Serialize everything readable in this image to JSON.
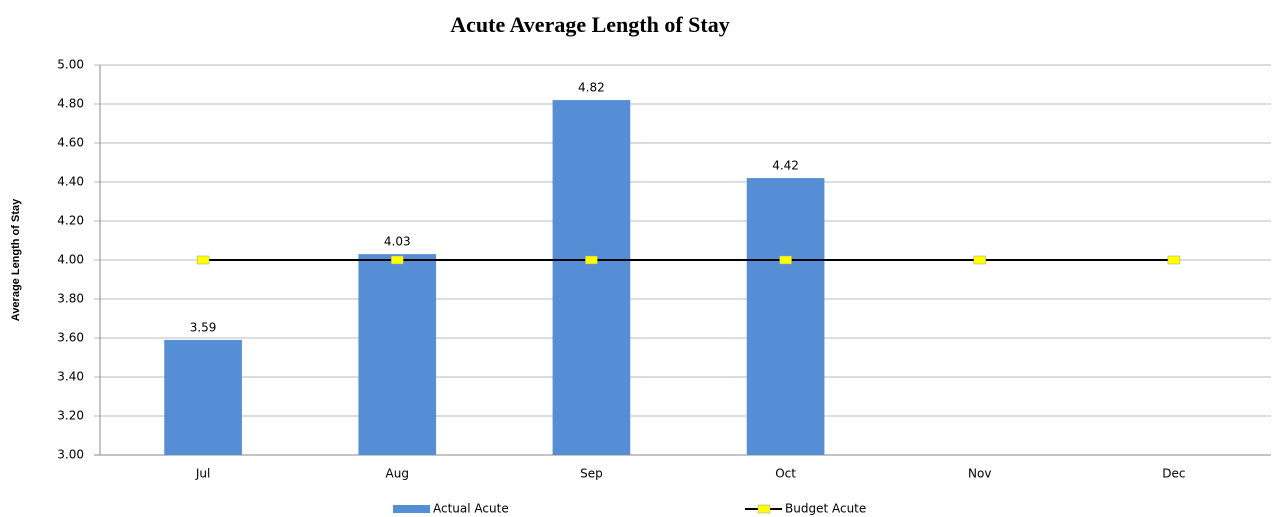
{
  "chart_data": {
    "type": "bar",
    "title": "Acute Average Length of Stay",
    "y_label": "Average Length of Stay",
    "categories": [
      "Jul",
      "Aug",
      "Sep",
      "Oct",
      "Nov",
      "Dec"
    ],
    "series": [
      {
        "name": "Actual Acute",
        "type": "bar",
        "color": "#558ed5",
        "values": [
          3.59,
          4.03,
          4.82,
          4.42,
          null,
          null
        ]
      },
      {
        "name": "Budget Acute",
        "type": "line",
        "color": "#000000",
        "marker_color": "#ffff00",
        "values": [
          4.0,
          4.0,
          4.0,
          4.0,
          4.0,
          4.0
        ]
      }
    ],
    "ylim": [
      3,
      5
    ],
    "yticks": [
      {
        "value": 3,
        "label": "3.00"
      },
      {
        "value": 3.2,
        "label": "3.20"
      },
      {
        "value": 3.4,
        "label": "3.40"
      },
      {
        "value": 3.6,
        "label": "3.60"
      },
      {
        "value": 3.8,
        "label": "3.80"
      },
      {
        "value": 4,
        "label": "4.00"
      },
      {
        "value": 4.2,
        "label": "4.20"
      },
      {
        "value": 4.4,
        "label": "4.40"
      },
      {
        "value": 4.6,
        "label": "4.60"
      },
      {
        "value": 4.8,
        "label": "4.80"
      },
      {
        "value": 5,
        "label": "5.00"
      }
    ],
    "grid": true,
    "legend": "bottom"
  }
}
